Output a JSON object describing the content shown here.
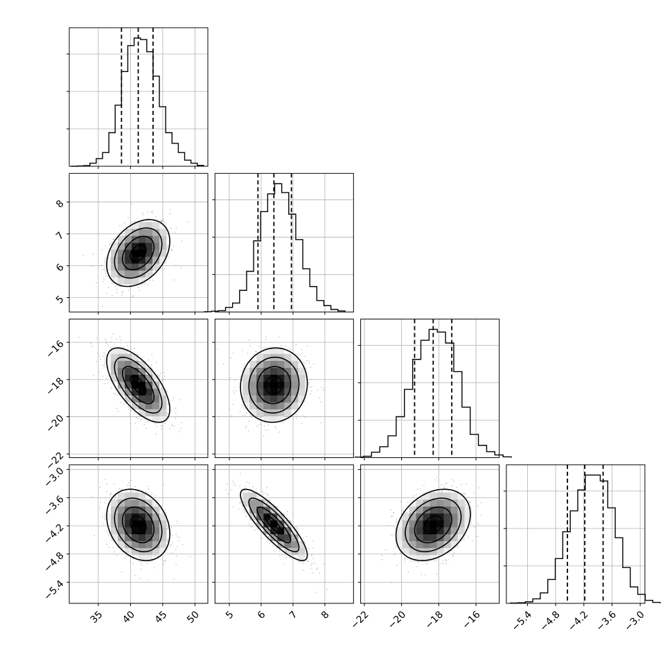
{
  "chart_data": {
    "type": "corner",
    "parameters": [
      {
        "ticks": [
          35,
          40,
          45,
          50
        ],
        "range": [
          30.5,
          52.0
        ]
      },
      {
        "ticks": [
          5,
          6,
          7,
          8
        ],
        "range": [
          4.55,
          8.9
        ]
      },
      {
        "ticks": [
          -22,
          -20,
          -18,
          -16
        ],
        "range": [
          -22.2,
          -14.75
        ]
      },
      {
        "ticks": [
          -5.4,
          -4.8,
          -4.2,
          -3.6,
          -3.0
        ],
        "range": [
          -5.85,
          -2.9
        ]
      }
    ],
    "tick_labels": [
      [
        "35",
        "40",
        "45",
        "50"
      ],
      [
        "5",
        "6",
        "7",
        "8"
      ],
      [
        "−22",
        "−20",
        "−18",
        "−16"
      ],
      [
        "−5.4",
        "−4.8",
        "−4.2",
        "−3.6",
        "−3.0"
      ]
    ],
    "quantiles": [
      [
        38.6,
        41.2,
        43.5
      ],
      [
        5.9,
        6.4,
        6.95
      ],
      [
        -19.3,
        -18.3,
        -17.3
      ],
      [
        -4.55,
        -4.18,
        -3.79
      ]
    ],
    "histograms": [
      [
        0,
        1,
        2,
        10,
        25,
        45,
        110,
        200,
        310,
        395,
        420,
        415,
        375,
        295,
        195,
        110,
        75,
        45,
        20,
        10,
        3
      ],
      [
        1,
        3,
        5,
        18,
        35,
        85,
        160,
        280,
        395,
        465,
        505,
        470,
        385,
        285,
        170,
        100,
        45,
        25,
        10,
        4
      ],
      [
        2,
        5,
        20,
        40,
        80,
        150,
        250,
        360,
        430,
        470,
        460,
        420,
        315,
        185,
        85,
        45,
        22,
        10,
        3
      ],
      [
        1,
        2,
        5,
        15,
        35,
        80,
        150,
        240,
        310,
        380,
        430,
        430,
        410,
        320,
        220,
        120,
        55,
        30,
        10,
        3
      ]
    ],
    "correlations": {
      "1-0": 0.35,
      "2-0": -0.65,
      "2-1": 0.05,
      "3-0": -0.25,
      "3-1": -0.85,
      "3-2": 0.3
    },
    "colors": {
      "ink": "#000000",
      "grid": "#b0b0b0",
      "scatter": "#a9a9a9"
    }
  }
}
